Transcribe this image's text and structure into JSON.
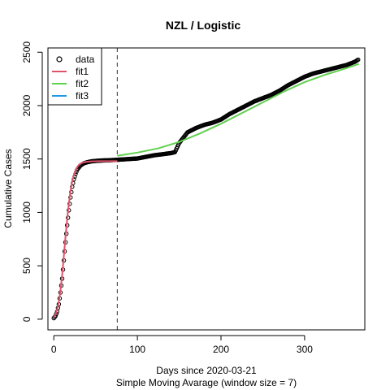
{
  "chart_data": {
    "type": "line",
    "title": "NZL / Logistic",
    "xlabel": "Days since 2020-03-21",
    "xlabel2": "Simple Moving Avarage (window size = 7)",
    "ylabel": "Cumulative Cases",
    "xlim": [
      -7,
      372
    ],
    "ylim": [
      -100,
      2540
    ],
    "xticks": [
      0,
      100,
      200,
      300
    ],
    "yticks": [
      0,
      500,
      1000,
      1500,
      2000,
      2500
    ],
    "cutoff_x": 76,
    "legend": {
      "position": "top-left",
      "entries": [
        {
          "name": "data",
          "kind": "point",
          "color": "#000000"
        },
        {
          "name": "fit1",
          "kind": "line",
          "color": "#DF536B"
        },
        {
          "name": "fit2",
          "kind": "line",
          "color": "#61D04F"
        },
        {
          "name": "fit3",
          "kind": "line",
          "color": "#2297E6"
        }
      ]
    },
    "series": [
      {
        "name": "data",
        "kind": "points",
        "color": "#000000",
        "x": [
          0,
          2,
          4,
          6,
          8,
          10,
          12,
          14,
          16,
          18,
          20,
          22,
          24,
          26,
          28,
          30,
          32,
          34,
          36,
          38,
          40,
          45,
          50,
          55,
          60,
          65,
          70,
          75,
          80,
          90,
          100,
          110,
          120,
          130,
          140,
          145,
          150,
          155,
          160,
          165,
          170,
          180,
          190,
          200,
          210,
          220,
          230,
          240,
          250,
          260,
          270,
          280,
          290,
          300,
          310,
          320,
          330,
          340,
          350,
          360,
          364
        ],
        "y": [
          10,
          30,
          70,
          140,
          250,
          380,
          550,
          720,
          880,
          1020,
          1140,
          1240,
          1310,
          1360,
          1400,
          1420,
          1440,
          1450,
          1460,
          1465,
          1470,
          1478,
          1482,
          1485,
          1487,
          1488,
          1490,
          1492,
          1495,
          1500,
          1505,
          1520,
          1535,
          1545,
          1555,
          1565,
          1650,
          1700,
          1750,
          1770,
          1790,
          1820,
          1840,
          1870,
          1920,
          1960,
          2000,
          2040,
          2070,
          2100,
          2140,
          2190,
          2230,
          2270,
          2300,
          2320,
          2340,
          2360,
          2380,
          2410,
          2430
        ]
      },
      {
        "name": "fit1",
        "kind": "line",
        "color": "#DF536B",
        "x": [
          0,
          2,
          4,
          6,
          8,
          10,
          12,
          14,
          16,
          18,
          20,
          22,
          24,
          26,
          28,
          30,
          32,
          34,
          36,
          40,
          45,
          50,
          55,
          60,
          65,
          70,
          76
        ],
        "y": [
          20,
          45,
          90,
          160,
          270,
          410,
          590,
          770,
          940,
          1080,
          1200,
          1290,
          1350,
          1395,
          1425,
          1445,
          1457,
          1465,
          1470,
          1475,
          1478,
          1479,
          1480,
          1480,
          1480,
          1480,
          1480
        ]
      },
      {
        "name": "fit2",
        "kind": "line",
        "color": "#61D04F",
        "x": [
          76,
          100,
          125,
          150,
          175,
          200,
          225,
          250,
          275,
          300,
          325,
          350,
          365
        ],
        "y": [
          1530,
          1560,
          1600,
          1660,
          1740,
          1830,
          1930,
          2030,
          2130,
          2220,
          2290,
          2350,
          2390
        ]
      }
    ]
  }
}
